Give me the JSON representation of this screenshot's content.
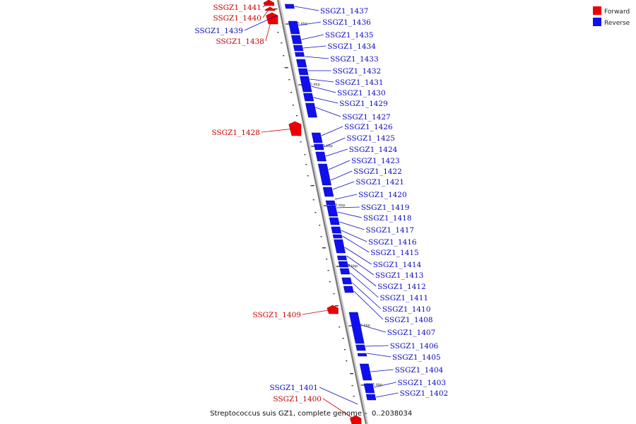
{
  "legend": {
    "forward_label": "Forward",
    "reverse_label": "Reverse",
    "forward_color": "#ee0000",
    "reverse_color": "#1010ee"
  },
  "caption": {
    "genome_name": "Streptococcus suis GZ1, complete genome",
    "range": "0..2038034"
  },
  "axis": {
    "ticks": [
      "1475 kbp",
      "1470 kbp",
      "1465 kbp",
      "1460 kbp",
      "1455 kbp",
      "1450 kbp",
      "1445 kbp"
    ]
  },
  "forward_genes": [
    "SSGZ1_1441",
    "SSGZ1_1440",
    "SSGZ1_1438",
    "SSGZ1_1428",
    "SSGZ1_1409",
    "SSGZ1_1400"
  ],
  "reverse_genes_left": [
    "SSGZ1_1439",
    "SSGZ1_1401"
  ],
  "reverse_genes_right": [
    "SSGZ1_1437",
    "SSGZ1_1436",
    "SSGZ1_1435",
    "SSGZ1_1434",
    "SSGZ1_1433",
    "SSGZ1_1432",
    "SSGZ1_1431",
    "SSGZ1_1430",
    "SSGZ1_1429",
    "SSGZ1_1427",
    "SSGZ1_1426",
    "SSGZ1_1425",
    "SSGZ1_1424",
    "SSGZ1_1423",
    "SSGZ1_1422",
    "SSGZ1_1421",
    "SSGZ1_1420",
    "SSGZ1_1419",
    "SSGZ1_1418",
    "SSGZ1_1417",
    "SSGZ1_1416",
    "SSGZ1_1415",
    "SSGZ1_1414",
    "SSGZ1_1413",
    "SSGZ1_1412",
    "SSGZ1_1411",
    "SSGZ1_1410",
    "SSGZ1_1408",
    "SSGZ1_1407",
    "SSGZ1_1406",
    "SSGZ1_1405",
    "SSGZ1_1404",
    "SSGZ1_1403",
    "SSGZ1_1402"
  ]
}
